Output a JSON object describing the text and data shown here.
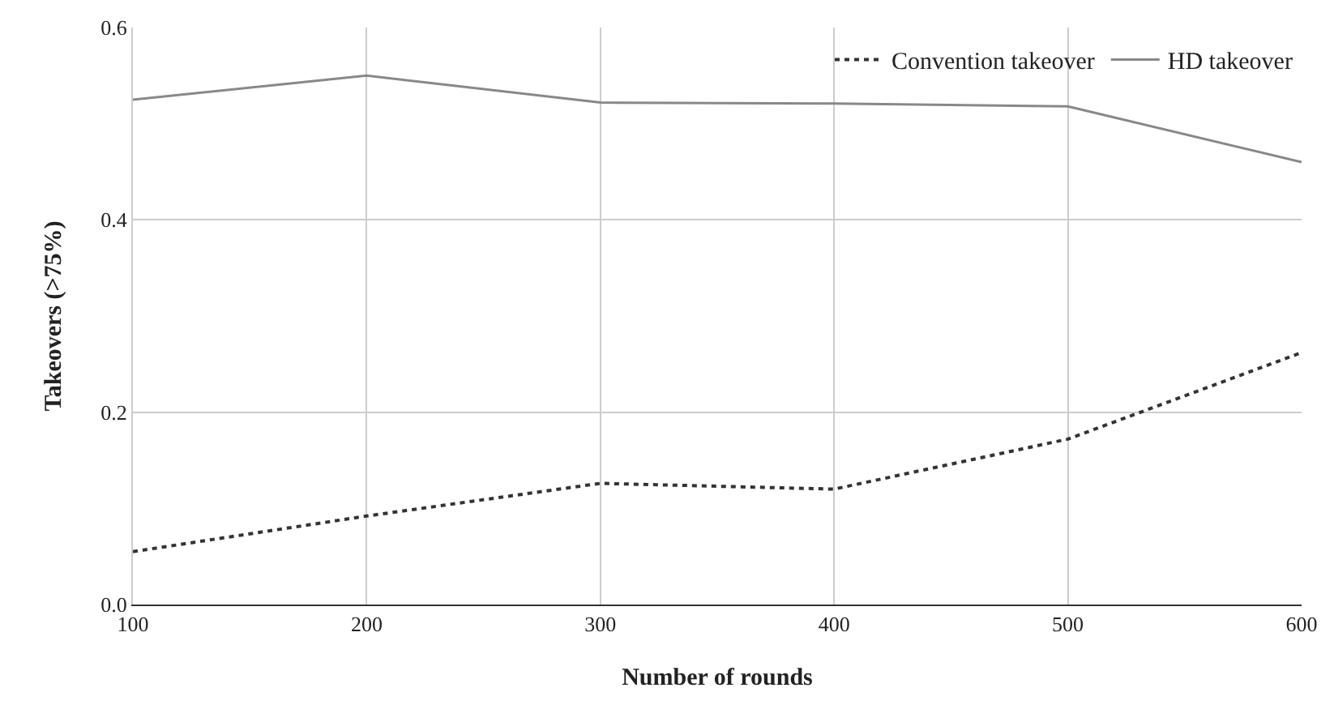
{
  "chart_data": {
    "type": "line",
    "xlabel": "Number of rounds",
    "ylabel": "Takeovers (>75%)",
    "x": [
      100,
      200,
      300,
      400,
      500,
      600
    ],
    "series": [
      {
        "name": "Convention takeover",
        "color": "#333333",
        "line_style": "dotted",
        "values": [
          0.055,
          0.092,
          0.126,
          0.12,
          0.172,
          0.262
        ]
      },
      {
        "name": "HD takeover",
        "color": "#888888",
        "line_style": "solid",
        "values": [
          0.525,
          0.55,
          0.522,
          0.521,
          0.518,
          0.46
        ]
      }
    ],
    "xlim": [
      100,
      600
    ],
    "xticks": [
      100,
      200,
      300,
      400,
      500,
      600
    ],
    "ylim": [
      0,
      0.6
    ],
    "yticks": [
      {
        "value": 0,
        "label": "0.0"
      },
      {
        "value": 0.2,
        "label": "0.2"
      },
      {
        "value": 0.4,
        "label": "0.4"
      },
      {
        "value": 0.6,
        "label": "0.6"
      }
    ],
    "grid": true,
    "legend": "top right",
    "marker": "none"
  }
}
